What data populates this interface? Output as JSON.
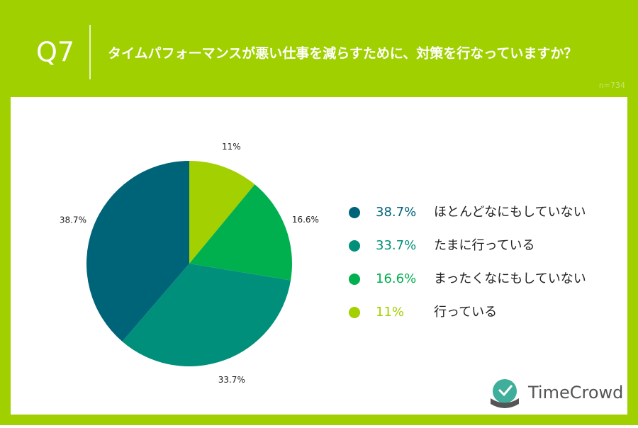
{
  "header": {
    "number": "Q7",
    "question": "タイムパフォーマンスが悪い仕事を減らすために、対策を行なっていますか？",
    "note": "n=734"
  },
  "brand": "TimeCrowd",
  "chart_data": {
    "type": "pie",
    "categories": [
      "行っている",
      "まったくなにもしていない",
      "たまに行っている",
      "ほとんどなにもしていない"
    ],
    "values": [
      11,
      16.6,
      33.7,
      38.7
    ],
    "value_labels": [
      "11%",
      "16.6%",
      "33.7%",
      "38.7%"
    ],
    "colors": [
      "#a3d000",
      "#00b04f",
      "#008f7a",
      "#006478"
    ]
  }
}
